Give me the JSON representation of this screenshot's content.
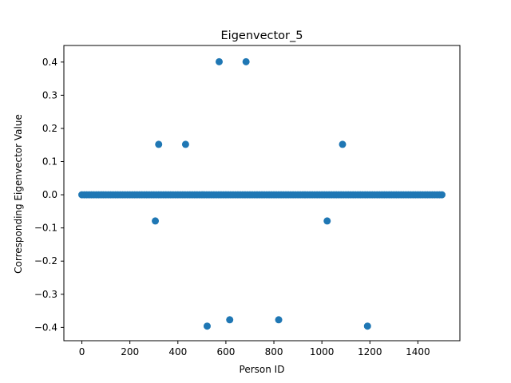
{
  "chart_data": {
    "type": "scatter",
    "title": "Eigenvector_5",
    "xlabel": "Person ID",
    "ylabel": "Corresponding Eigenvector Value",
    "xlim": [
      -75,
      1575
    ],
    "ylim": [
      -0.44,
      0.45
    ],
    "xticks": [
      0,
      200,
      400,
      600,
      800,
      1000,
      1200,
      1400
    ],
    "yticks": [
      -0.4,
      -0.3,
      -0.2,
      -0.1,
      0.0,
      0.1,
      0.2,
      0.3,
      0.4
    ],
    "ytick_labels": [
      "−0.4",
      "−0.3",
      "−0.2",
      "−0.1",
      "0.0",
      "0.1",
      "0.2",
      "0.3",
      "0.4"
    ],
    "grid": false,
    "marker_color": "#1f77b4",
    "baseline": {
      "x_start": 0,
      "x_end": 1500,
      "y": 0.0,
      "note_count": 1501
    },
    "points": [
      {
        "x": 306,
        "y": -0.079
      },
      {
        "x": 320,
        "y": 0.152
      },
      {
        "x": 432,
        "y": 0.152
      },
      {
        "x": 522,
        "y": -0.396
      },
      {
        "x": 572,
        "y": 0.401
      },
      {
        "x": 616,
        "y": -0.377
      },
      {
        "x": 684,
        "y": 0.401
      },
      {
        "x": 820,
        "y": -0.377
      },
      {
        "x": 1022,
        "y": -0.079
      },
      {
        "x": 1086,
        "y": 0.152
      },
      {
        "x": 1190,
        "y": -0.396
      }
    ]
  }
}
